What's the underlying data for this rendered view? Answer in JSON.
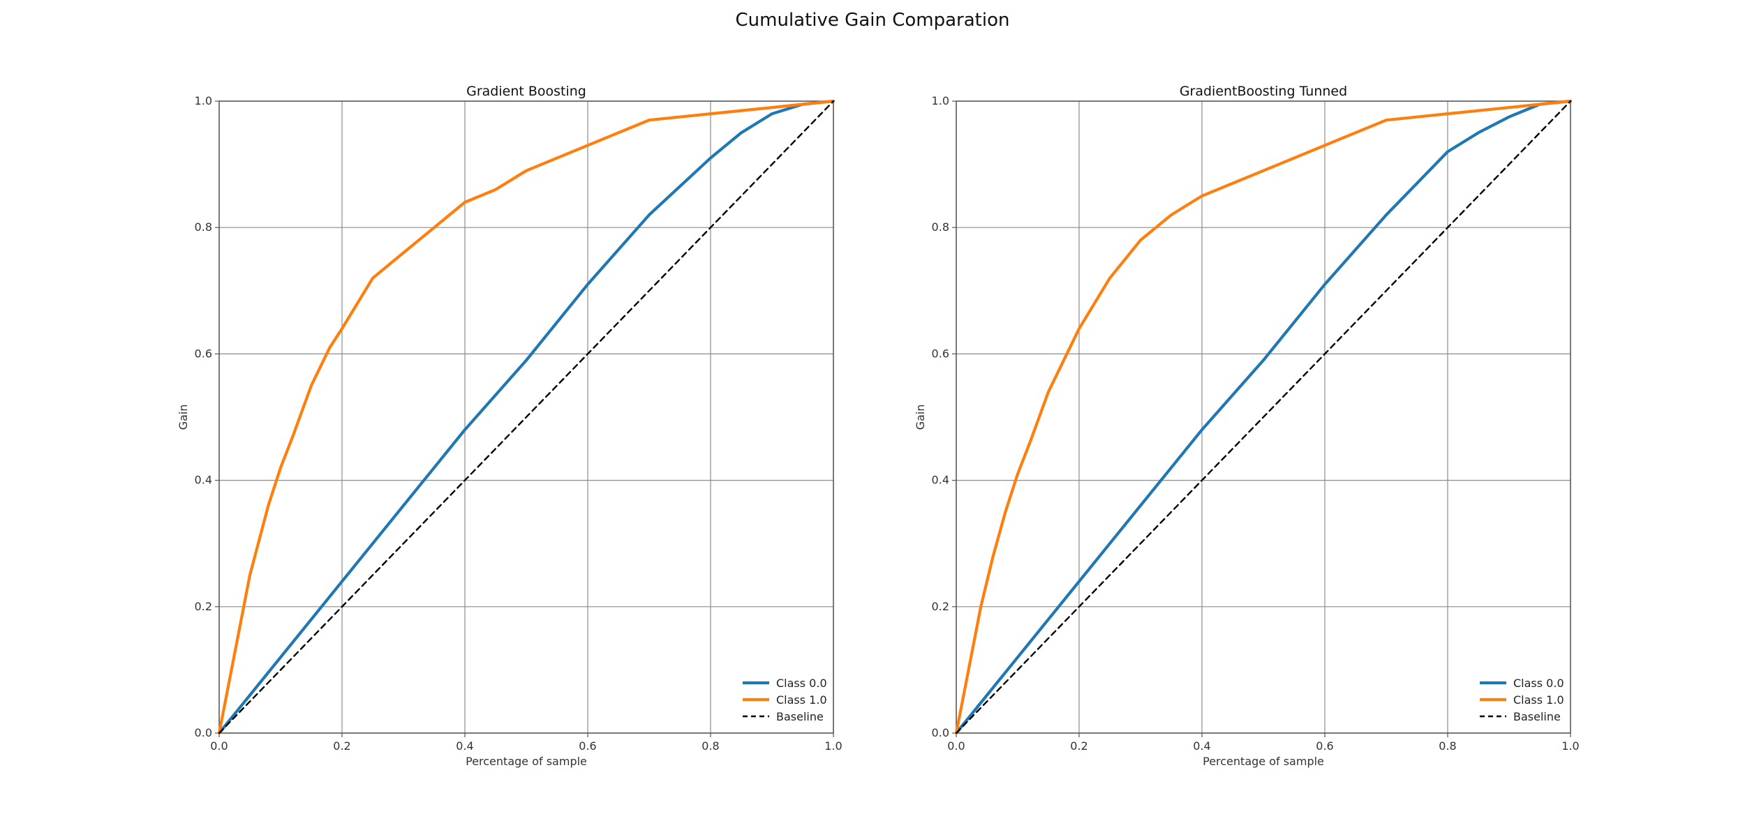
{
  "suptitle": "Cumulative Gain Comparation",
  "colors": {
    "class0": "#1f77b4",
    "class1": "#ff7f0e",
    "baseline": "#000000",
    "grid": "#8c8c8c"
  },
  "chart_data": [
    {
      "type": "line",
      "title": "Gradient Boosting",
      "xlabel": "Percentage of sample",
      "ylabel": "Gain",
      "xlim": [
        0,
        1
      ],
      "ylim": [
        0,
        1
      ],
      "xticks": [
        "0.0",
        "0.2",
        "0.4",
        "0.6",
        "0.8",
        "1.0"
      ],
      "yticks": [
        "0.0",
        "0.2",
        "0.4",
        "0.6",
        "0.8",
        "1.0"
      ],
      "grid": true,
      "legend_position": "lower-right",
      "series": [
        {
          "name": "Class 0.0",
          "color": "#1f77b4",
          "style": "solid",
          "x": [
            0,
            0.1,
            0.2,
            0.3,
            0.4,
            0.5,
            0.6,
            0.7,
            0.8,
            0.85,
            0.9,
            0.95,
            1.0
          ],
          "y": [
            0,
            0.12,
            0.24,
            0.36,
            0.48,
            0.59,
            0.71,
            0.82,
            0.91,
            0.95,
            0.98,
            0.995,
            1.0
          ]
        },
        {
          "name": "Class 1.0",
          "color": "#ff7f0e",
          "style": "solid",
          "x": [
            0,
            0.02,
            0.05,
            0.08,
            0.1,
            0.12,
            0.15,
            0.18,
            0.2,
            0.25,
            0.3,
            0.35,
            0.4,
            0.45,
            0.5,
            0.6,
            0.7,
            0.8,
            0.9,
            1.0
          ],
          "y": [
            0,
            0.1,
            0.25,
            0.36,
            0.42,
            0.47,
            0.55,
            0.61,
            0.64,
            0.72,
            0.76,
            0.8,
            0.84,
            0.86,
            0.89,
            0.93,
            0.97,
            0.98,
            0.99,
            1.0
          ]
        },
        {
          "name": "Baseline",
          "color": "#000000",
          "style": "dashed",
          "x": [
            0,
            1
          ],
          "y": [
            0,
            1
          ]
        }
      ]
    },
    {
      "type": "line",
      "title": "GradientBoosting Tunned",
      "xlabel": "Percentage of sample",
      "ylabel": "Gain",
      "xlim": [
        0,
        1
      ],
      "ylim": [
        0,
        1
      ],
      "xticks": [
        "0.0",
        "0.2",
        "0.4",
        "0.6",
        "0.8",
        "1.0"
      ],
      "yticks": [
        "0.0",
        "0.2",
        "0.4",
        "0.6",
        "0.8",
        "1.0"
      ],
      "grid": true,
      "legend_position": "lower-right",
      "series": [
        {
          "name": "Class 0.0",
          "color": "#1f77b4",
          "style": "solid",
          "x": [
            0,
            0.1,
            0.2,
            0.3,
            0.4,
            0.5,
            0.6,
            0.7,
            0.8,
            0.85,
            0.9,
            0.95,
            1.0
          ],
          "y": [
            0,
            0.12,
            0.24,
            0.36,
            0.48,
            0.59,
            0.71,
            0.82,
            0.92,
            0.95,
            0.975,
            0.995,
            1.0
          ]
        },
        {
          "name": "Class 1.0",
          "color": "#ff7f0e",
          "style": "solid",
          "x": [
            0,
            0.02,
            0.04,
            0.06,
            0.08,
            0.1,
            0.12,
            0.15,
            0.18,
            0.2,
            0.25,
            0.3,
            0.35,
            0.4,
            0.5,
            0.6,
            0.7,
            0.8,
            0.9,
            1.0
          ],
          "y": [
            0,
            0.1,
            0.2,
            0.28,
            0.35,
            0.41,
            0.46,
            0.54,
            0.6,
            0.64,
            0.72,
            0.78,
            0.82,
            0.85,
            0.89,
            0.93,
            0.97,
            0.98,
            0.99,
            1.0
          ]
        },
        {
          "name": "Baseline",
          "color": "#000000",
          "style": "dashed",
          "x": [
            0,
            1
          ],
          "y": [
            0,
            1
          ]
        }
      ]
    }
  ]
}
